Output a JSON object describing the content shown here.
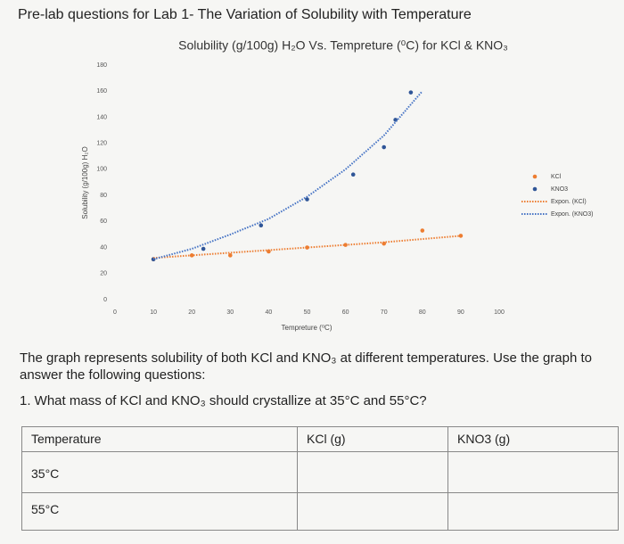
{
  "title": "Pre-lab questions for Lab 1- The Variation of Solubility with Temperature",
  "chart_data": {
    "type": "scatter",
    "title": "Solubility (g/100g) H₂O Vs. Tempreture (⁰C) for KCl & KNO₃",
    "x_label": "Tempreture (⁰C)",
    "y_label": "Solubility (g/100g) H₂O",
    "xlim": [
      0,
      100
    ],
    "xticks": [
      0,
      10,
      20,
      30,
      40,
      50,
      60,
      70,
      80,
      90,
      100
    ],
    "ylim": [
      0,
      180
    ],
    "yticks": [
      0,
      20,
      40,
      60,
      80,
      100,
      120,
      140,
      160,
      180
    ],
    "legend": "right",
    "series": [
      {
        "name": "KCl",
        "color": "#ed7d31",
        "mark": "dot",
        "x": [
          10,
          20,
          30,
          40,
          50,
          60,
          70,
          80,
          90
        ],
        "values": [
          31,
          34,
          34,
          37,
          40,
          42,
          43,
          53,
          49
        ]
      },
      {
        "name": "KNO3",
        "color": "#2f5597",
        "mark": "dot",
        "x": [
          10,
          23,
          38,
          50,
          62,
          70,
          73,
          77
        ],
        "values": [
          31,
          39,
          57,
          77,
          96,
          117,
          138,
          159
        ]
      },
      {
        "name": "Expon. (KCl)",
        "color": "#ed7d31",
        "mark": "dotted-line",
        "x": [
          10,
          30,
          50,
          70,
          90
        ],
        "values": [
          32,
          36,
          40,
          44,
          49
        ]
      },
      {
        "name": "Expon. (KNO3)",
        "color": "#4472c4",
        "mark": "dotted-line",
        "x": [
          10,
          20,
          30,
          40,
          50,
          60,
          70,
          80
        ],
        "values": [
          31,
          39,
          50,
          62,
          79,
          100,
          126,
          160
        ]
      }
    ]
  },
  "paragraph": "The graph represents solubility of both KCl and KNO₃ at different temperatures. Use the graph to answer the following questions:",
  "question": "1. What mass of KCl and KNO₃ should crystallize at 35°C and 55°C?",
  "table": {
    "header": [
      "Temperature",
      "KCl (g)",
      "KNO3 (g)"
    ],
    "rows": [
      "35°C",
      "55°C"
    ]
  }
}
